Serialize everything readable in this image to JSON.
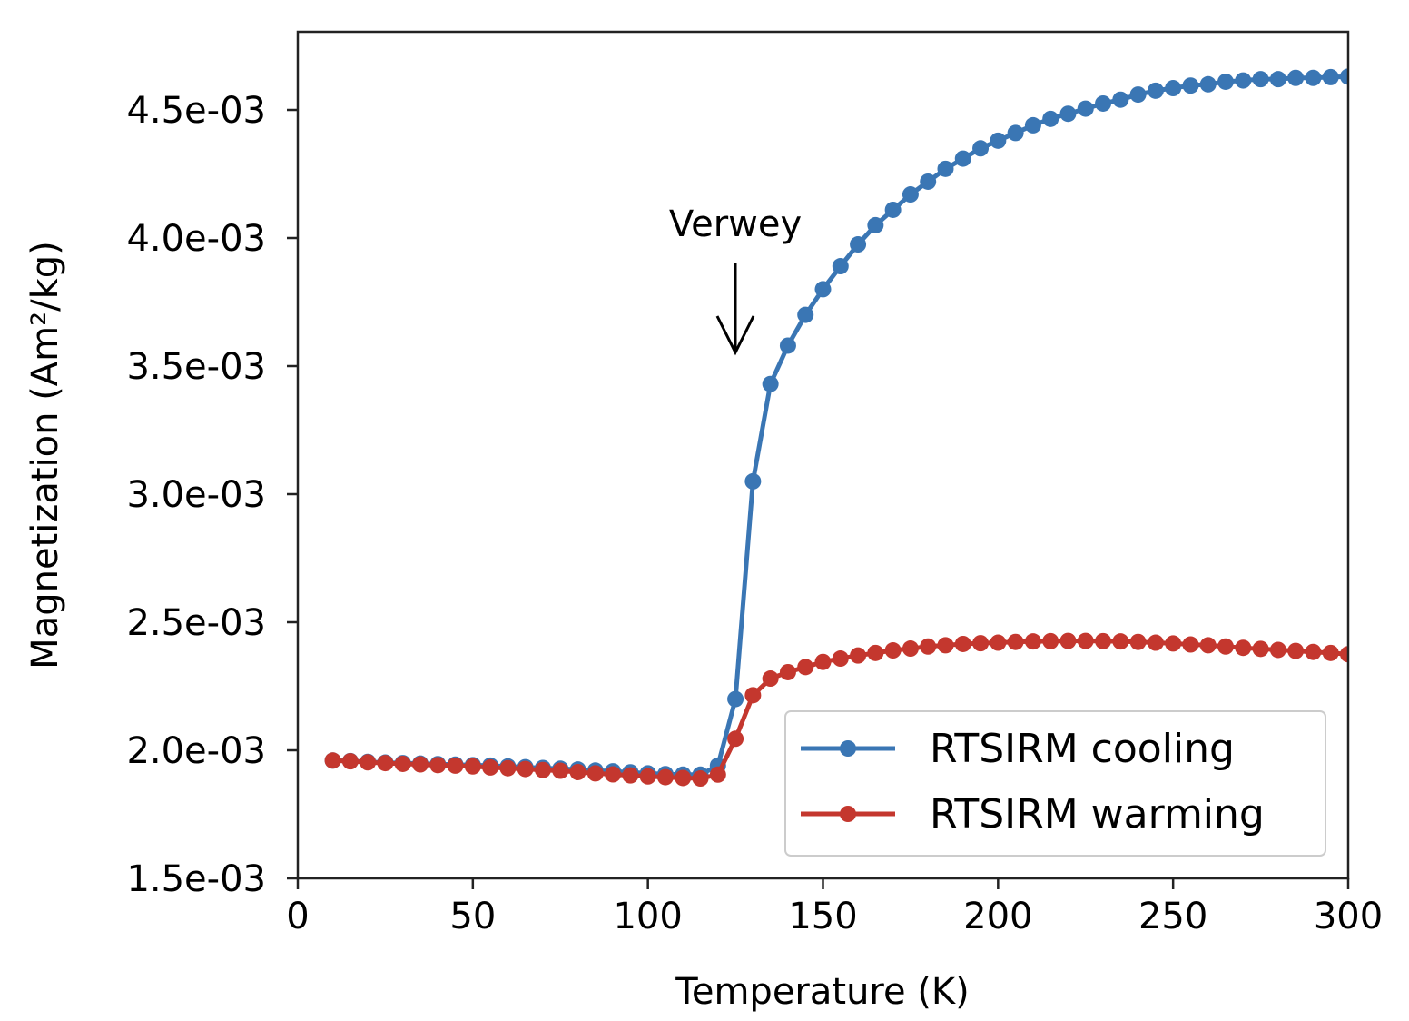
{
  "chart_data": {
    "type": "line",
    "title": "",
    "xlabel": "Temperature (K)",
    "ylabel": "Magnetization (Am²/kg)",
    "xlim": [
      0,
      300
    ],
    "ylim": [
      0.0015,
      0.0048
    ],
    "xticks": [
      0,
      50,
      100,
      150,
      200,
      250,
      300
    ],
    "xtick_labels": [
      "0",
      "50",
      "100",
      "150",
      "200",
      "250",
      "300"
    ],
    "yticks": [
      0.0015,
      0.002,
      0.0025,
      0.003,
      0.0035,
      0.004,
      0.0045
    ],
    "ytick_labels": [
      "1.5e-03",
      "2.0e-03",
      "2.5e-03",
      "3.0e-03",
      "3.5e-03",
      "4.0e-03",
      "4.5e-03"
    ],
    "grid": false,
    "legend_position": "lower-right",
    "annotation": {
      "text": "Verwey",
      "arrow_target": [
        125,
        0.00355
      ]
    },
    "x": [
      10,
      15,
      20,
      25,
      30,
      35,
      40,
      45,
      50,
      55,
      60,
      65,
      70,
      75,
      80,
      85,
      90,
      95,
      100,
      105,
      110,
      115,
      120,
      125,
      130,
      135,
      140,
      145,
      150,
      155,
      160,
      165,
      170,
      175,
      180,
      185,
      190,
      195,
      200,
      205,
      210,
      215,
      220,
      225,
      230,
      235,
      240,
      245,
      250,
      255,
      260,
      265,
      270,
      275,
      280,
      285,
      290,
      295,
      300
    ],
    "series": [
      {
        "name": "RTSIRM cooling",
        "color": "#3a76b4",
        "values": [
          0.00196,
          0.001958,
          0.001955,
          0.001952,
          0.00195,
          0.001948,
          0.001946,
          0.001944,
          0.001942,
          0.00194,
          0.001937,
          0.001934,
          0.001931,
          0.001928,
          0.001925,
          0.001921,
          0.001918,
          0.001914,
          0.00191,
          0.001907,
          0.001905,
          0.001905,
          0.00194,
          0.0022,
          0.00305,
          0.00343,
          0.00358,
          0.0037,
          0.0038,
          0.00389,
          0.003975,
          0.00405,
          0.00411,
          0.00417,
          0.00422,
          0.00427,
          0.00431,
          0.00435,
          0.00438,
          0.00441,
          0.00444,
          0.004465,
          0.004485,
          0.004505,
          0.004525,
          0.00454,
          0.00456,
          0.004575,
          0.004585,
          0.004595,
          0.0046,
          0.00461,
          0.004615,
          0.00462,
          0.00462,
          0.004625,
          0.004625,
          0.004628,
          0.00463
        ]
      },
      {
        "name": "RTSIRM warming",
        "color": "#c4372e",
        "values": [
          0.00196,
          0.001957,
          0.001953,
          0.00195,
          0.001947,
          0.001945,
          0.001942,
          0.00194,
          0.001937,
          0.001933,
          0.00193,
          0.001927,
          0.001923,
          0.00192,
          0.001915,
          0.00191,
          0.001906,
          0.001902,
          0.001898,
          0.001895,
          0.001892,
          0.00189,
          0.001905,
          0.002045,
          0.002215,
          0.00228,
          0.002305,
          0.002325,
          0.002345,
          0.002358,
          0.00237,
          0.00238,
          0.00239,
          0.002397,
          0.002405,
          0.00241,
          0.002415,
          0.002418,
          0.00242,
          0.002423,
          0.002425,
          0.002426,
          0.002427,
          0.002427,
          0.002426,
          0.002425,
          0.002423,
          0.00242,
          0.002417,
          0.002413,
          0.00241,
          0.002405,
          0.0024,
          0.002396,
          0.002392,
          0.002388,
          0.002384,
          0.00238,
          0.002375
        ]
      }
    ]
  }
}
